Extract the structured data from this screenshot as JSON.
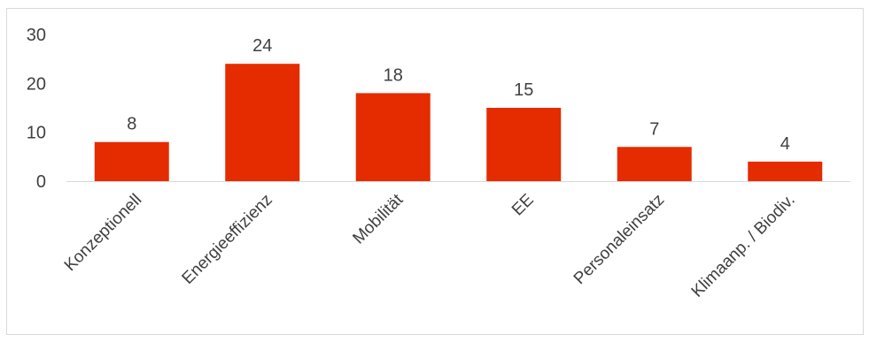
{
  "chart_data": {
    "type": "bar",
    "categories": [
      "Konzeptionell",
      "Energieeffizienz",
      "Mobilität",
      "EE",
      "Personaleinsatz",
      "Klimaanp. / Biodiv."
    ],
    "values": [
      8,
      24,
      18,
      15,
      7,
      4
    ],
    "data_labels": [
      "8",
      "24",
      "18",
      "15",
      "7",
      "4"
    ],
    "title": "",
    "xlabel": "",
    "ylabel": "",
    "ylim": [
      0,
      30
    ],
    "y_ticks": [
      "0",
      "10",
      "20",
      "30"
    ],
    "grid": false,
    "legend": "none",
    "bar_color": "#e52b00",
    "axis_color": "#d9d9d9",
    "text_color": "#404040"
  }
}
